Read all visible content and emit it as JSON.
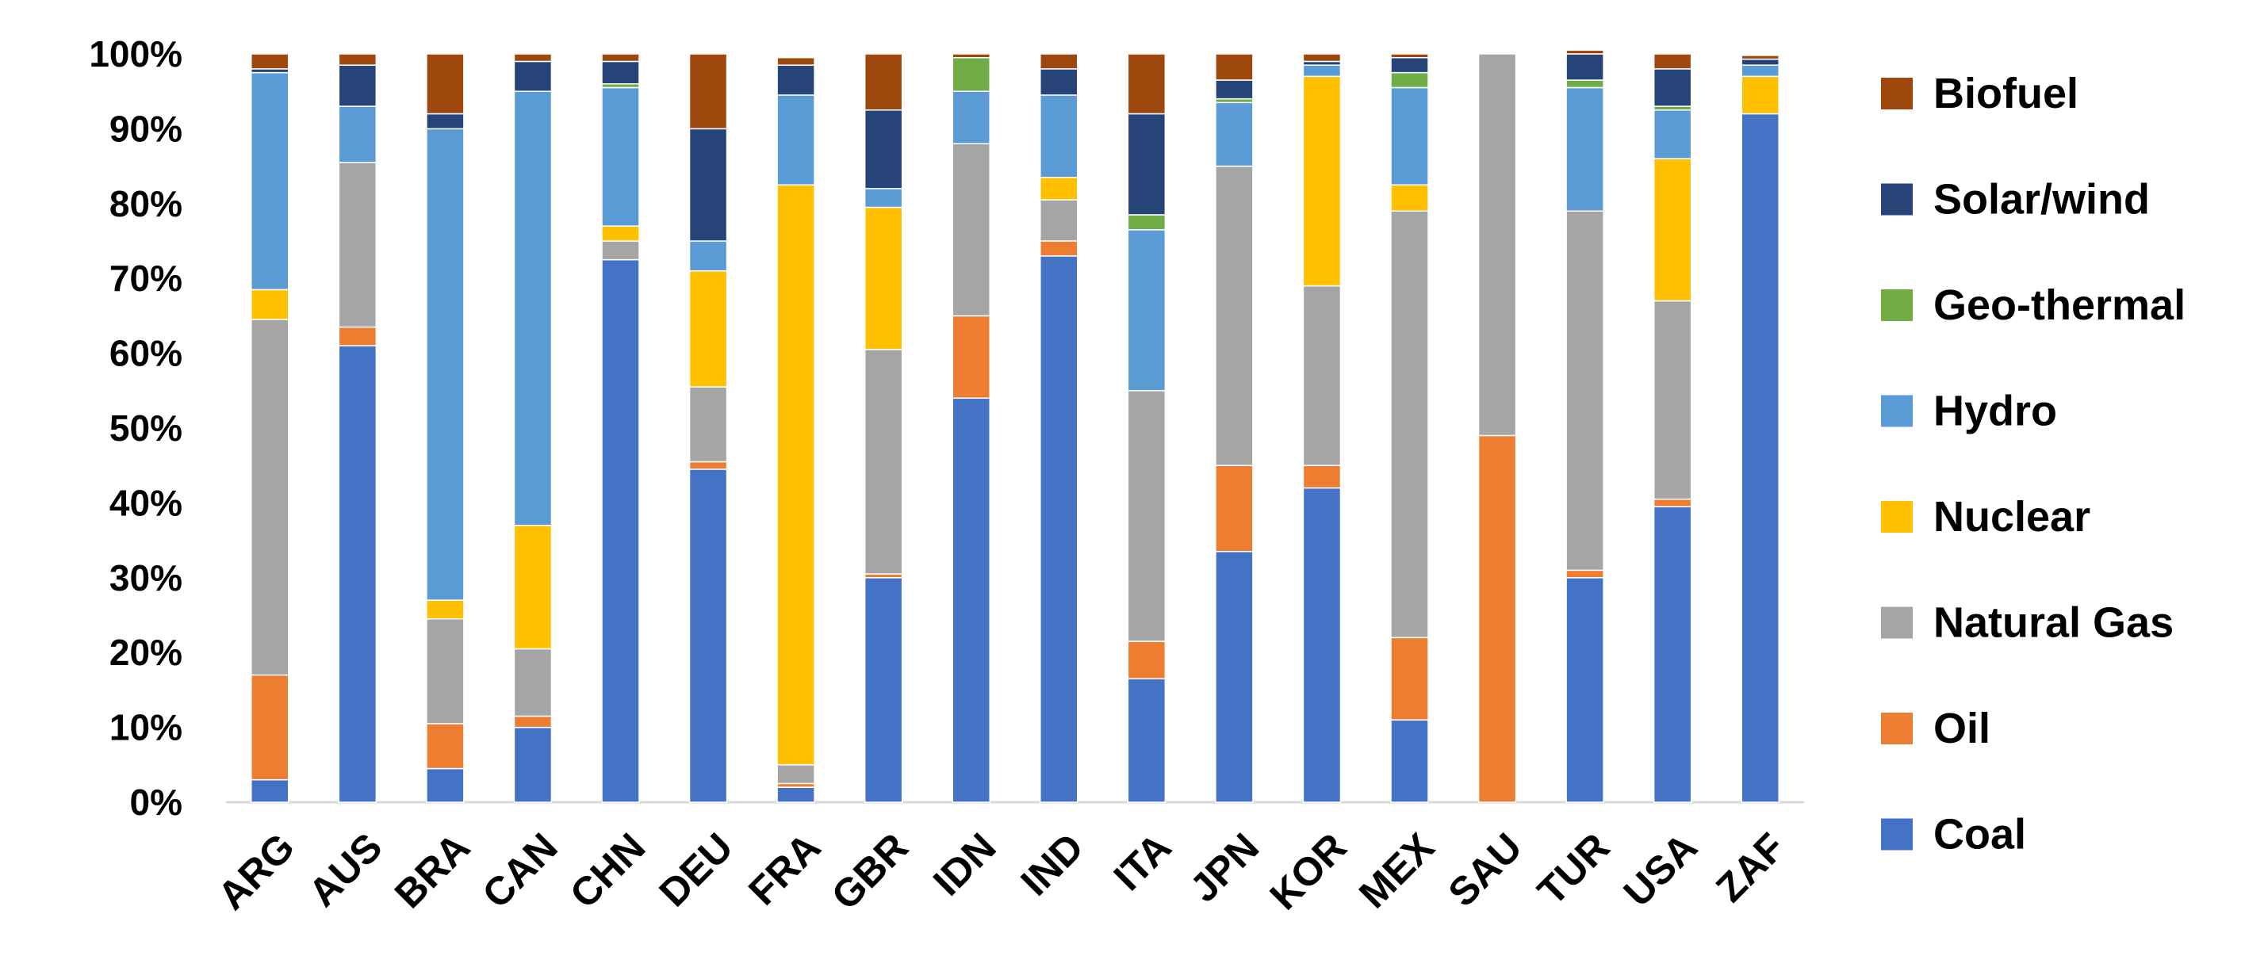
{
  "chart_data": {
    "type": "bar",
    "stacked": true,
    "normalized": true,
    "categories": [
      "ARG",
      "AUS",
      "BRA",
      "CAN",
      "CHN",
      "DEU",
      "FRA",
      "GBR",
      "IDN",
      "IND",
      "ITA",
      "JPN",
      "KOR",
      "MEX",
      "SAU",
      "TUR",
      "USA",
      "ZAF"
    ],
    "y_ticks": [
      "0%",
      "10%",
      "20%",
      "30%",
      "40%",
      "50%",
      "60%",
      "70%",
      "80%",
      "90%",
      "100%"
    ],
    "ylim": [
      0,
      100
    ],
    "grid": false,
    "legend_position": "right",
    "series": [
      {
        "name": "Coal",
        "color": "#4472C4",
        "values": [
          3,
          61,
          4.5,
          10,
          72.5,
          44.5,
          2,
          30,
          54,
          73,
          16.5,
          33.5,
          42,
          11,
          0,
          30,
          39.5,
          92
        ]
      },
      {
        "name": "Oil",
        "color": "#ED7D31",
        "values": [
          14,
          2.5,
          6,
          1.5,
          0,
          1,
          0.5,
          0.5,
          11,
          2,
          5,
          11.5,
          3,
          11,
          49,
          1,
          1,
          0
        ]
      },
      {
        "name": "Natural Gas",
        "color": "#A5A5A5",
        "values": [
          47.5,
          22,
          14,
          9,
          2.5,
          10,
          2.5,
          30,
          23,
          5.5,
          33.5,
          40,
          24,
          57,
          51,
          48,
          26.5,
          0
        ]
      },
      {
        "name": "Nuclear",
        "color": "#FFC000",
        "values": [
          4,
          0,
          2.5,
          16.5,
          2,
          15.5,
          77.5,
          19,
          0,
          3,
          0,
          0,
          28,
          3.5,
          0,
          0,
          19,
          5
        ]
      },
      {
        "name": "Hydro",
        "color": "#5B9BD5",
        "values": [
          29,
          7.5,
          63,
          58,
          18.5,
          4,
          12,
          2.5,
          7,
          11,
          21.5,
          8.5,
          1.5,
          13,
          0,
          16.5,
          6.5,
          1.5
        ]
      },
      {
        "name": "Geo-thermal",
        "color": "#70AD47",
        "values": [
          0,
          0,
          0,
          0,
          0.5,
          0,
          0,
          0,
          4.5,
          0,
          2,
          0.5,
          0,
          2,
          0,
          1,
          0.5,
          0
        ]
      },
      {
        "name": "Solar/wind",
        "color": "#264478",
        "values": [
          0.5,
          5.5,
          2,
          4,
          3,
          15,
          4,
          10.5,
          0,
          3.5,
          13.5,
          2.5,
          0.5,
          2,
          0,
          3.5,
          5,
          0.8
        ]
      },
      {
        "name": "Biofuel",
        "color": "#9E480E",
        "values": [
          2,
          1.5,
          8,
          1,
          1,
          10,
          1,
          7.5,
          0.5,
          2,
          8,
          3.5,
          1,
          0.5,
          0,
          0.5,
          2,
          0.5
        ]
      }
    ]
  }
}
